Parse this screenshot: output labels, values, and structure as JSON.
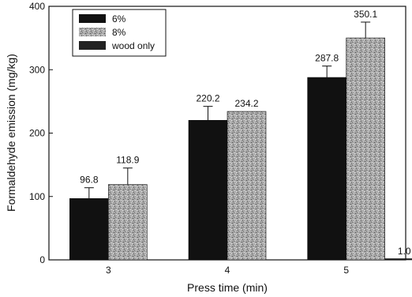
{
  "chart_data": {
    "type": "bar",
    "categories": [
      "3",
      "4",
      "5"
    ],
    "series": [
      {
        "name": "6%",
        "values": [
          96.8,
          220.2,
          287.8
        ],
        "errors": [
          17,
          22,
          18
        ],
        "color": "#111111",
        "pattern": "solid"
      },
      {
        "name": "8%",
        "values": [
          118.9,
          234.2,
          350.1
        ],
        "errors": [
          26,
          0,
          25
        ],
        "color": "#9a9a9a",
        "pattern": "speckled"
      },
      {
        "name": "wood only",
        "values": [
          null,
          null,
          1.0
        ],
        "errors": [
          0,
          0,
          0
        ],
        "color": "#222222",
        "pattern": "solid-dark"
      }
    ],
    "data_labels": [
      [
        "96.8",
        "220.2",
        "287.8"
      ],
      [
        "118.9",
        "234.2",
        "350.1"
      ],
      [
        "",
        "",
        "1.0"
      ]
    ],
    "xlabel": "Press time (min)",
    "ylabel": "Formaldehyde emission (mg/kg)",
    "ylim": [
      0,
      400
    ],
    "yticks": [
      0,
      100,
      200,
      300,
      400
    ],
    "legend_position": "top-left",
    "grid": false
  }
}
